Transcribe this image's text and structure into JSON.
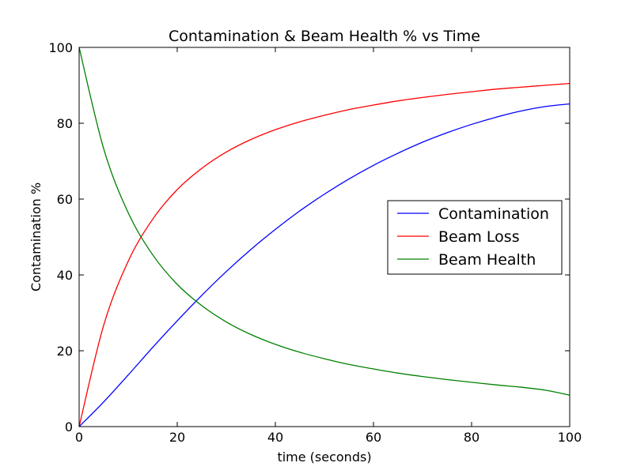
{
  "chart_data": {
    "type": "line",
    "title": "Contamination & Beam Health % vs Time",
    "xlabel": "time (seconds)",
    "ylabel": "Contamination %",
    "xlim": [
      0,
      100
    ],
    "ylim": [
      0,
      100
    ],
    "x_ticks": [
      0,
      20,
      40,
      60,
      80,
      100
    ],
    "y_ticks": [
      0,
      20,
      40,
      60,
      80,
      100
    ],
    "grid": false,
    "legend_position": "center-right",
    "x": [
      0,
      5,
      10,
      15,
      20,
      25,
      30,
      35,
      40,
      45,
      50,
      55,
      60,
      65,
      70,
      75,
      80,
      85,
      90,
      95,
      100
    ],
    "series": [
      {
        "name": "Contamination",
        "color": "#0000ff",
        "values": [
          0,
          6.5,
          13.6,
          20.9,
          27.9,
          34.6,
          40.9,
          46.7,
          52.0,
          56.9,
          61.3,
          65.3,
          68.9,
          72.1,
          75.0,
          77.5,
          79.7,
          81.6,
          83.2,
          84.4,
          85.1
        ]
      },
      {
        "name": "Beam Loss",
        "color": "#ff0000",
        "values": [
          0,
          26.7,
          43.6,
          54.7,
          62.5,
          68.1,
          72.4,
          75.7,
          78.3,
          80.4,
          82.1,
          83.6,
          84.8,
          85.9,
          86.8,
          87.6,
          88.3,
          89.0,
          89.5,
          90.0,
          90.5
        ]
      },
      {
        "name": "Beam Health",
        "color": "#008000",
        "values": [
          100,
          73.3,
          56.4,
          45.3,
          37.5,
          31.9,
          27.6,
          24.3,
          21.7,
          19.6,
          17.9,
          16.4,
          15.2,
          14.1,
          13.2,
          12.4,
          11.7,
          11.0,
          10.4,
          9.6,
          8.3
        ]
      }
    ]
  }
}
